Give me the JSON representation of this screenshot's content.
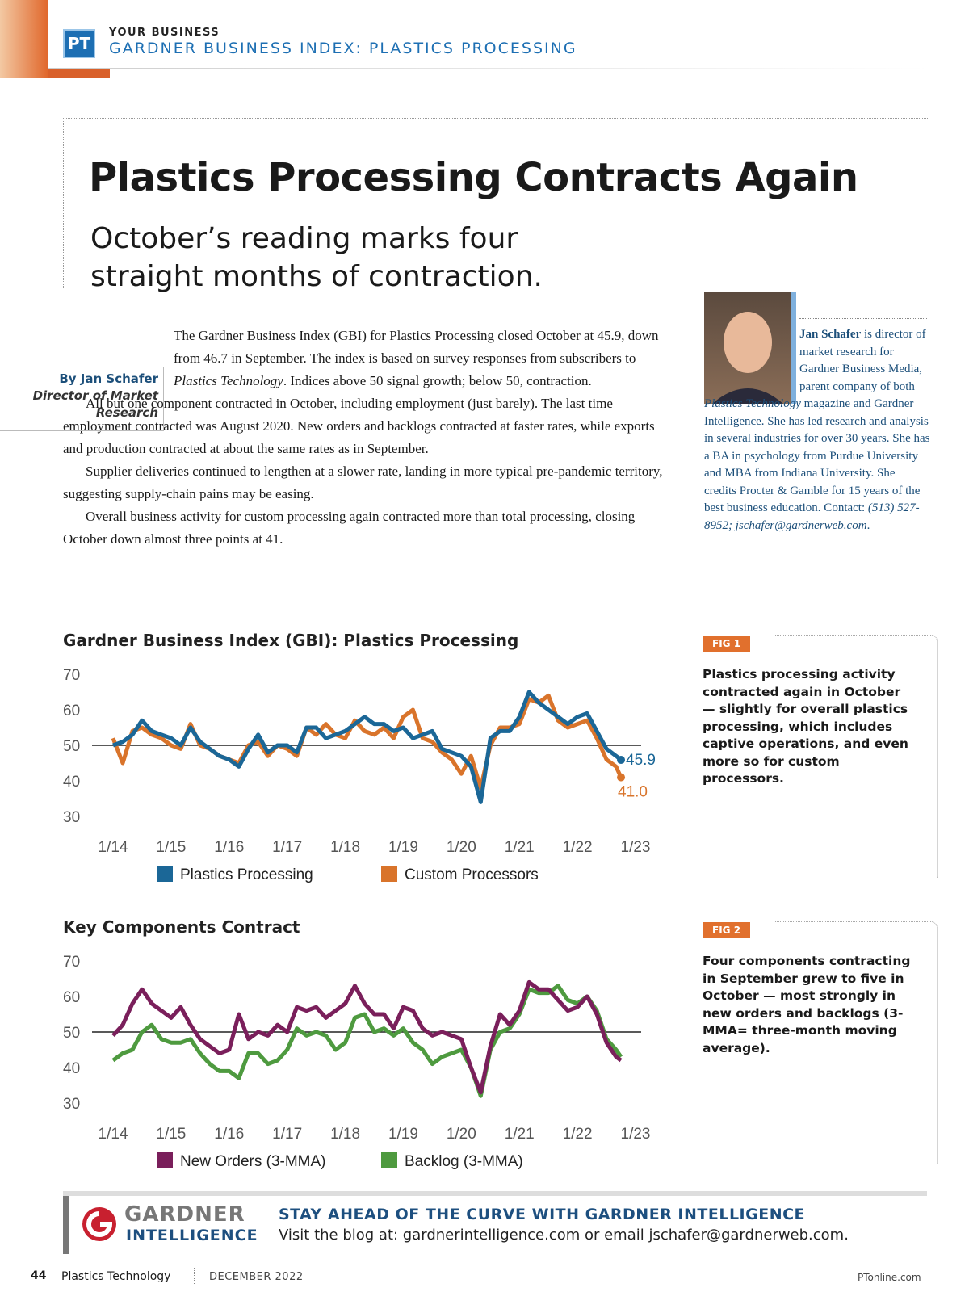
{
  "header": {
    "badge": "PT",
    "section": "YOUR BUSINESS",
    "title": "GARDNER BUSINESS INDEX: PLASTICS PROCESSING"
  },
  "title": "Plastics Processing Contracts Again",
  "subtitle": [
    "October’s reading marks four",
    "straight months of contraction."
  ],
  "byline": {
    "name": "By Jan Schafer",
    "role": "Director of Market Research"
  },
  "body": [
    [
      "The Gardner Business Index (GBI) for Plastics Processing closed October at 45.9, down from 46.7 in September. The index is based on survey responses from subscribers to ",
      "Plastics Technology",
      ". Indices above 50 signal growth; below 50, contraction."
    ],
    [
      "All but one component contracted in October, including employment (just barely). The last time employment contracted was August 2020. New orders and backlogs contracted at faster rates, while exports and production contracted at about the same rates as in September."
    ],
    [
      "Supplier deliveries continued to lengthen at a slower rate, landing in more typical pre-pandemic territory, suggesting supply-chain pains may be easing."
    ],
    [
      "Overall business activity for custom processing again contracted more than total processing, closing October down almost three points at 41."
    ]
  ],
  "bio": [
    "Jan Schafer",
    " is director of market research for Gardner Business Media, parent company of both ",
    "Plastics Technology",
    " magazine and Gardner Intelligence. She has led research and analysis in several industries for over 30 years. She has a BA in psychology from Purdue University and MBA from Indiana University. She credits Procter & Gamble for 15 years of the best business education. Contact: ",
    "(513) 527-8952; jschafer@gardnerweb.com",
    "."
  ],
  "figs": [
    {
      "label": "FIG 1",
      "text": "Plastics processing activity contracted again in October — slightly for overall plastics processing, which includes captive operations, and even more so for custom processors."
    },
    {
      "label": "FIG 2",
      "text": "Four components contracting in September grew to five in October — most strongly in new orders and backlogs (3-MMA= three-month moving average)."
    }
  ],
  "chart_data": [
    {
      "type": "line",
      "title": "Gardner Business Index (GBI): Plastics Processing",
      "x": [
        "1/14",
        "3/14",
        "5/14",
        "7/14",
        "9/14",
        "11/14",
        "1/15",
        "3/15",
        "5/15",
        "7/15",
        "9/15",
        "11/15",
        "1/16",
        "3/16",
        "5/16",
        "7/16",
        "9/16",
        "11/16",
        "1/17",
        "3/17",
        "5/17",
        "7/17",
        "9/17",
        "11/17",
        "1/18",
        "3/18",
        "5/18",
        "7/18",
        "9/18",
        "11/18",
        "1/19",
        "3/19",
        "5/19",
        "7/19",
        "9/19",
        "11/19",
        "1/20",
        "3/20",
        "5/20",
        "7/20",
        "9/20",
        "11/20",
        "1/21",
        "3/21",
        "5/21",
        "7/21",
        "9/21",
        "11/21",
        "1/22",
        "3/22",
        "5/22",
        "7/22",
        "9/22",
        "10/22"
      ],
      "xlim": [
        "1/14",
        "1/23"
      ],
      "xticks": [
        "1/14",
        "1/15",
        "1/16",
        "1/17",
        "1/18",
        "1/19",
        "1/20",
        "1/21",
        "1/22",
        "1/23"
      ],
      "ylim": [
        30,
        70
      ],
      "yticks": [
        30,
        40,
        50,
        60,
        70
      ],
      "reference_line": 50,
      "series": [
        {
          "name": "Plastics Processing",
          "color": "#1b6797",
          "values": [
            50,
            51,
            53,
            57,
            54,
            53,
            52,
            50,
            55,
            51,
            49,
            47,
            46,
            44,
            49,
            53,
            48,
            50,
            50,
            48,
            55,
            55,
            52,
            53,
            54,
            56,
            58,
            56,
            56,
            54,
            55,
            52,
            53,
            54,
            49,
            48,
            47,
            44,
            34,
            52,
            54,
            54,
            58,
            65,
            62,
            60,
            58,
            56,
            58,
            59,
            54,
            49,
            47,
            45.9
          ],
          "value_labels": [
            null,
            null,
            null,
            null,
            null,
            null,
            null,
            null,
            null,
            null,
            null,
            null,
            null,
            null,
            null,
            null,
            null,
            null,
            null,
            null,
            null,
            null,
            null,
            null,
            null,
            null,
            null,
            null,
            null,
            null,
            null,
            null,
            null,
            null,
            null,
            null,
            null,
            null,
            null,
            null,
            null,
            null,
            null,
            null,
            null,
            null,
            null,
            null,
            null,
            null,
            null,
            null,
            null,
            "45.9"
          ]
        },
        {
          "name": "Custom Processors",
          "color": "#d9742b",
          "values": [
            52,
            45,
            54,
            55,
            53,
            52,
            50,
            49,
            56,
            50,
            49,
            47,
            46,
            45,
            50,
            51,
            47,
            50,
            49,
            47,
            55,
            53,
            56,
            53,
            52,
            57,
            54,
            53,
            55,
            52,
            58,
            60,
            52,
            51,
            48,
            46,
            42,
            47,
            38,
            50,
            55,
            55,
            56,
            63,
            62,
            64,
            57,
            55,
            56,
            57,
            52,
            46,
            44,
            41
          ],
          "value_labels": [
            null,
            null,
            null,
            null,
            null,
            null,
            null,
            null,
            null,
            null,
            null,
            null,
            null,
            null,
            null,
            null,
            null,
            null,
            null,
            null,
            null,
            null,
            null,
            null,
            null,
            null,
            null,
            null,
            null,
            null,
            null,
            null,
            null,
            null,
            null,
            null,
            null,
            null,
            null,
            null,
            null,
            null,
            null,
            null,
            null,
            null,
            null,
            null,
            null,
            null,
            null,
            null,
            null,
            "41.0"
          ]
        }
      ]
    },
    {
      "type": "line",
      "title": "Key Components Contract",
      "x": [
        "1/14",
        "3/14",
        "5/14",
        "7/14",
        "9/14",
        "11/14",
        "1/15",
        "3/15",
        "5/15",
        "7/15",
        "9/15",
        "11/15",
        "1/16",
        "3/16",
        "5/16",
        "7/16",
        "9/16",
        "11/16",
        "1/17",
        "3/17",
        "5/17",
        "7/17",
        "9/17",
        "11/17",
        "1/18",
        "3/18",
        "5/18",
        "7/18",
        "9/18",
        "11/18",
        "1/19",
        "3/19",
        "5/19",
        "7/19",
        "9/19",
        "11/19",
        "1/20",
        "3/20",
        "5/20",
        "7/20",
        "9/20",
        "11/20",
        "1/21",
        "3/21",
        "5/21",
        "7/21",
        "9/21",
        "11/21",
        "1/22",
        "3/22",
        "5/22",
        "7/22",
        "9/22",
        "10/22"
      ],
      "xlim": [
        "1/14",
        "1/23"
      ],
      "xticks": [
        "1/14",
        "1/15",
        "1/16",
        "1/17",
        "1/18",
        "1/19",
        "1/20",
        "1/21",
        "1/22",
        "1/23"
      ],
      "ylim": [
        30,
        70
      ],
      "yticks": [
        30,
        40,
        50,
        60,
        70
      ],
      "reference_line": 50,
      "series": [
        {
          "name": "New Orders (3-MMA)",
          "color": "#7a1f5b",
          "values": [
            49,
            52,
            58,
            62,
            58,
            56,
            54,
            57,
            52,
            48,
            46,
            44,
            45,
            55,
            48,
            50,
            49,
            52,
            50,
            57,
            56,
            57,
            54,
            56,
            58,
            63,
            58,
            55,
            55,
            51,
            57,
            56,
            51,
            49,
            50,
            49,
            48,
            40,
            33,
            46,
            55,
            52,
            56,
            64,
            62,
            62,
            59,
            56,
            57,
            60,
            55,
            47,
            43,
            42
          ]
        },
        {
          "name": "Backlog (3-MMA)",
          "color": "#4e9a3f",
          "values": [
            42,
            44,
            45,
            50,
            52,
            48,
            47,
            47,
            48,
            44,
            41,
            39,
            39,
            37,
            44,
            44,
            41,
            42,
            45,
            51,
            49,
            50,
            49,
            45,
            47,
            54,
            55,
            50,
            51,
            49,
            51,
            47,
            45,
            41,
            43,
            44,
            45,
            40,
            32,
            45,
            50,
            51,
            55,
            62,
            61,
            61,
            63,
            59,
            58,
            60,
            56,
            48,
            45,
            43
          ]
        }
      ]
    }
  ],
  "banner": {
    "logo_top": "GARDNER",
    "logo_bottom": "INTELLIGENCE",
    "headline": "STAY AHEAD OF THE CURVE WITH GARDNER INTELLIGENCE",
    "text": "Visit the blog at: gardnerintelligence.com or email jschafer@gardnerweb.com."
  },
  "footer": {
    "page": "44",
    "magazine": "Plastics Technology",
    "date": "DECEMBER 2022",
    "site": "PTonline.com"
  }
}
